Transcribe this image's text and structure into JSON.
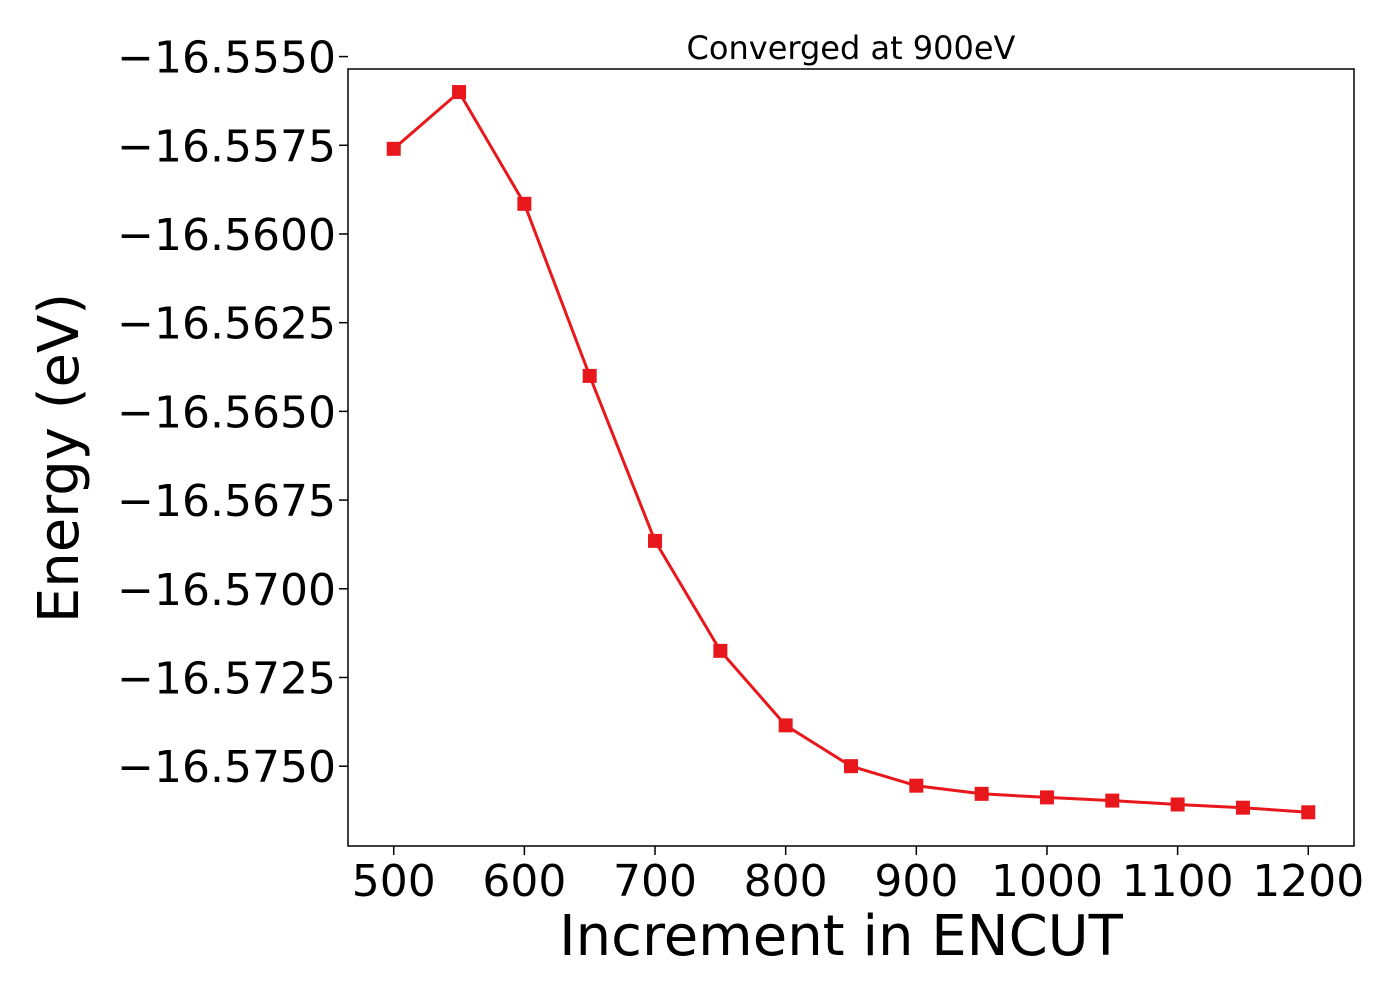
{
  "chart_data": {
    "type": "line",
    "title": "Converged at 900eV",
    "xlabel": "Increment in ENCUT",
    "ylabel": "Energy (eV)",
    "xlim": [
      465,
      1235
    ],
    "ylim": [
      -16.57725,
      -16.55535
    ],
    "grid": false,
    "x_ticks": [
      500,
      600,
      700,
      800,
      900,
      1000,
      1100,
      1200
    ],
    "x_tick_labels": [
      "500",
      "600",
      "700",
      "800",
      "900",
      "1000",
      "1100",
      "1200"
    ],
    "y_ticks": [
      -16.555,
      -16.5575,
      -16.56,
      -16.5625,
      -16.565,
      -16.5675,
      -16.57,
      -16.5725,
      -16.575
    ],
    "y_tick_labels": [
      "−16.5550",
      "−16.5575",
      "−16.5600",
      "−16.5625",
      "−16.5650",
      "−16.5675",
      "−16.5700",
      "−16.5725",
      "−16.5750"
    ],
    "series": [
      {
        "color": "#e8171c",
        "marker": "square",
        "x": [
          500,
          550,
          600,
          650,
          700,
          750,
          800,
          850,
          900,
          950,
          1000,
          1050,
          1100,
          1150,
          1200
        ],
        "y": [
          -16.5576,
          -16.556,
          -16.55915,
          -16.564,
          -16.56865,
          -16.57175,
          -16.57385,
          -16.575,
          -16.57555,
          -16.57578,
          -16.57588,
          -16.57597,
          -16.57608,
          -16.57617,
          -16.5763
        ]
      }
    ]
  }
}
